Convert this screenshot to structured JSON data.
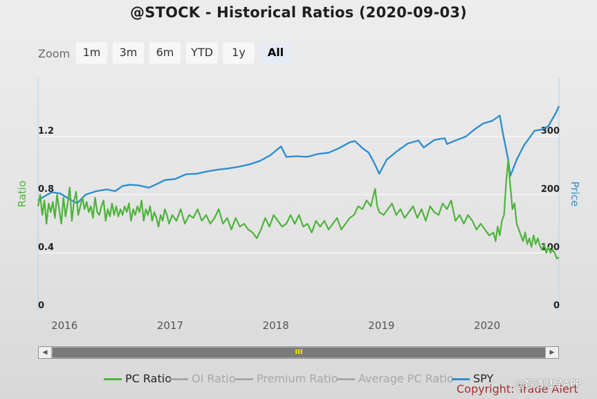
{
  "title": "@STOCK - Historical Ratios (2020-09-03)",
  "zoom": {
    "label": "Zoom",
    "buttons": [
      "1m",
      "3m",
      "6m",
      "YTD",
      "1y",
      "All"
    ],
    "active": "All"
  },
  "legend": [
    {
      "name": "PC Ratio",
      "color": "#4db33b",
      "visible": true
    },
    {
      "name": "OI Ratio",
      "color": "#a8a8a8",
      "visible": false
    },
    {
      "name": "Premium Ratio",
      "color": "#a8a8a8",
      "visible": false
    },
    {
      "name": "Average PC Ratio",
      "color": "#a8a8a8",
      "visible": false
    },
    {
      "name": "SPY",
      "color": "#2f8fd0",
      "visible": true
    }
  ],
  "navigator": {
    "grip": "III",
    "left_arrow": "◀",
    "right_arrow": "▶"
  },
  "copyright": "Copyright: Trade Alert",
  "watermark": "@智通财经APP",
  "chart_data": {
    "type": "line",
    "x_range": [
      2015.75,
      2020.68
    ],
    "x_ticks": [
      "2016",
      "2017",
      "2018",
      "2019",
      "2020"
    ],
    "x_tick_values": [
      2016,
      2017,
      2018,
      2019,
      2020
    ],
    "y_left": {
      "label": "Ratio",
      "range": [
        0,
        1.6
      ],
      "ticks": [
        "0",
        "0.4",
        "0.8",
        "1.2"
      ],
      "tick_values": [
        0,
        0.4,
        0.8,
        1.2
      ]
    },
    "y_right": {
      "label": "Price",
      "range": [
        0,
        400
      ],
      "ticks": [
        "0",
        "100",
        "200",
        "300"
      ],
      "tick_values": [
        0,
        100,
        200,
        300
      ]
    },
    "series": [
      {
        "name": "SPY",
        "axis": "right",
        "points": [
          [
            2015.75,
            190
          ],
          [
            2015.8,
            196
          ],
          [
            2015.88,
            204
          ],
          [
            2015.96,
            202
          ],
          [
            2016.05,
            192
          ],
          [
            2016.12,
            185
          ],
          [
            2016.2,
            200
          ],
          [
            2016.3,
            206
          ],
          [
            2016.4,
            209
          ],
          [
            2016.48,
            206
          ],
          [
            2016.55,
            215
          ],
          [
            2016.62,
            217
          ],
          [
            2016.7,
            216
          ],
          [
            2016.8,
            212
          ],
          [
            2016.87,
            218
          ],
          [
            2016.95,
            225
          ],
          [
            2017.05,
            227
          ],
          [
            2017.15,
            235
          ],
          [
            2017.25,
            236
          ],
          [
            2017.35,
            240
          ],
          [
            2017.45,
            243
          ],
          [
            2017.55,
            245
          ],
          [
            2017.65,
            248
          ],
          [
            2017.75,
            252
          ],
          [
            2017.85,
            258
          ],
          [
            2017.95,
            268
          ],
          [
            2018.05,
            283
          ],
          [
            2018.1,
            265
          ],
          [
            2018.2,
            266
          ],
          [
            2018.3,
            265
          ],
          [
            2018.4,
            270
          ],
          [
            2018.5,
            272
          ],
          [
            2018.6,
            280
          ],
          [
            2018.7,
            290
          ],
          [
            2018.75,
            292
          ],
          [
            2018.82,
            280
          ],
          [
            2018.88,
            272
          ],
          [
            2018.93,
            255
          ],
          [
            2018.98,
            236
          ],
          [
            2019.05,
            260
          ],
          [
            2019.15,
            275
          ],
          [
            2019.25,
            288
          ],
          [
            2019.35,
            293
          ],
          [
            2019.4,
            281
          ],
          [
            2019.5,
            294
          ],
          [
            2019.6,
            297
          ],
          [
            2019.62,
            287
          ],
          [
            2019.7,
            293
          ],
          [
            2019.8,
            300
          ],
          [
            2019.88,
            312
          ],
          [
            2019.96,
            322
          ],
          [
            2020.05,
            327
          ],
          [
            2020.12,
            336
          ],
          [
            2020.15,
            305
          ],
          [
            2020.2,
            260
          ],
          [
            2020.22,
            232
          ],
          [
            2020.28,
            260
          ],
          [
            2020.35,
            285
          ],
          [
            2020.45,
            310
          ],
          [
            2020.52,
            312
          ],
          [
            2020.58,
            318
          ],
          [
            2020.65,
            340
          ],
          [
            2020.68,
            352
          ]
        ]
      },
      {
        "name": "PC Ratio",
        "axis": "left",
        "points": [
          [
            2015.75,
            0.72
          ],
          [
            2015.77,
            0.8
          ],
          [
            2015.79,
            0.66
          ],
          [
            2015.81,
            0.76
          ],
          [
            2015.83,
            0.6
          ],
          [
            2015.85,
            0.74
          ],
          [
            2015.87,
            0.68
          ],
          [
            2015.89,
            0.75
          ],
          [
            2015.91,
            0.64
          ],
          [
            2015.93,
            0.8
          ],
          [
            2015.95,
            0.7
          ],
          [
            2015.97,
            0.6
          ],
          [
            2015.99,
            0.78
          ],
          [
            2016.01,
            0.65
          ],
          [
            2016.03,
            0.74
          ],
          [
            2016.05,
            0.85
          ],
          [
            2016.07,
            0.62
          ],
          [
            2016.09,
            0.75
          ],
          [
            2016.11,
            0.82
          ],
          [
            2016.13,
            0.66
          ],
          [
            2016.15,
            0.72
          ],
          [
            2016.17,
            0.78
          ],
          [
            2016.19,
            0.7
          ],
          [
            2016.21,
            0.75
          ],
          [
            2016.23,
            0.68
          ],
          [
            2016.25,
            0.72
          ],
          [
            2016.27,
            0.64
          ],
          [
            2016.29,
            0.78
          ],
          [
            2016.31,
            0.68
          ],
          [
            2016.33,
            0.66
          ],
          [
            2016.35,
            0.72
          ],
          [
            2016.37,
            0.76
          ],
          [
            2016.39,
            0.62
          ],
          [
            2016.41,
            0.7
          ],
          [
            2016.43,
            0.65
          ],
          [
            2016.45,
            0.74
          ],
          [
            2016.47,
            0.66
          ],
          [
            2016.49,
            0.72
          ],
          [
            2016.51,
            0.65
          ],
          [
            2016.53,
            0.7
          ],
          [
            2016.55,
            0.66
          ],
          [
            2016.57,
            0.72
          ],
          [
            2016.59,
            0.68
          ],
          [
            2016.61,
            0.74
          ],
          [
            2016.63,
            0.62
          ],
          [
            2016.65,
            0.7
          ],
          [
            2016.67,
            0.66
          ],
          [
            2016.69,
            0.72
          ],
          [
            2016.71,
            0.68
          ],
          [
            2016.73,
            0.76
          ],
          [
            2016.75,
            0.62
          ],
          [
            2016.77,
            0.7
          ],
          [
            2016.79,
            0.66
          ],
          [
            2016.81,
            0.72
          ],
          [
            2016.83,
            0.62
          ],
          [
            2016.85,
            0.68
          ],
          [
            2016.87,
            0.64
          ],
          [
            2016.89,
            0.58
          ],
          [
            2016.91,
            0.66
          ],
          [
            2016.93,
            0.62
          ],
          [
            2016.95,
            0.7
          ],
          [
            2016.97,
            0.66
          ],
          [
            2016.99,
            0.6
          ],
          [
            2017.02,
            0.66
          ],
          [
            2017.06,
            0.62
          ],
          [
            2017.1,
            0.7
          ],
          [
            2017.14,
            0.6
          ],
          [
            2017.18,
            0.66
          ],
          [
            2017.22,
            0.64
          ],
          [
            2017.26,
            0.7
          ],
          [
            2017.3,
            0.62
          ],
          [
            2017.34,
            0.66
          ],
          [
            2017.38,
            0.6
          ],
          [
            2017.42,
            0.64
          ],
          [
            2017.46,
            0.7
          ],
          [
            2017.5,
            0.6
          ],
          [
            2017.54,
            0.64
          ],
          [
            2017.58,
            0.56
          ],
          [
            2017.62,
            0.64
          ],
          [
            2017.66,
            0.58
          ],
          [
            2017.7,
            0.6
          ],
          [
            2017.74,
            0.56
          ],
          [
            2017.78,
            0.54
          ],
          [
            2017.82,
            0.5
          ],
          [
            2017.86,
            0.56
          ],
          [
            2017.9,
            0.64
          ],
          [
            2017.94,
            0.58
          ],
          [
            2017.98,
            0.66
          ],
          [
            2018.02,
            0.62
          ],
          [
            2018.06,
            0.58
          ],
          [
            2018.1,
            0.6
          ],
          [
            2018.14,
            0.66
          ],
          [
            2018.18,
            0.6
          ],
          [
            2018.22,
            0.66
          ],
          [
            2018.26,
            0.58
          ],
          [
            2018.3,
            0.6
          ],
          [
            2018.34,
            0.54
          ],
          [
            2018.38,
            0.62
          ],
          [
            2018.42,
            0.58
          ],
          [
            2018.46,
            0.62
          ],
          [
            2018.5,
            0.56
          ],
          [
            2018.54,
            0.6
          ],
          [
            2018.58,
            0.64
          ],
          [
            2018.62,
            0.56
          ],
          [
            2018.66,
            0.6
          ],
          [
            2018.7,
            0.64
          ],
          [
            2018.74,
            0.66
          ],
          [
            2018.78,
            0.72
          ],
          [
            2018.82,
            0.7
          ],
          [
            2018.86,
            0.76
          ],
          [
            2018.9,
            0.72
          ],
          [
            2018.94,
            0.84
          ],
          [
            2018.96,
            0.72
          ],
          [
            2018.98,
            0.68
          ],
          [
            2019.02,
            0.66
          ],
          [
            2019.06,
            0.7
          ],
          [
            2019.1,
            0.74
          ],
          [
            2019.14,
            0.66
          ],
          [
            2019.18,
            0.7
          ],
          [
            2019.22,
            0.64
          ],
          [
            2019.26,
            0.68
          ],
          [
            2019.3,
            0.72
          ],
          [
            2019.34,
            0.64
          ],
          [
            2019.38,
            0.7
          ],
          [
            2019.42,
            0.62
          ],
          [
            2019.46,
            0.72
          ],
          [
            2019.5,
            0.68
          ],
          [
            2019.54,
            0.66
          ],
          [
            2019.58,
            0.74
          ],
          [
            2019.62,
            0.7
          ],
          [
            2019.66,
            0.76
          ],
          [
            2019.7,
            0.62
          ],
          [
            2019.74,
            0.66
          ],
          [
            2019.78,
            0.6
          ],
          [
            2019.82,
            0.66
          ],
          [
            2019.86,
            0.62
          ],
          [
            2019.9,
            0.56
          ],
          [
            2019.94,
            0.6
          ],
          [
            2019.98,
            0.56
          ],
          [
            2020.02,
            0.52
          ],
          [
            2020.06,
            0.54
          ],
          [
            2020.08,
            0.48
          ],
          [
            2020.1,
            0.58
          ],
          [
            2020.12,
            0.52
          ],
          [
            2020.14,
            0.62
          ],
          [
            2020.16,
            0.66
          ],
          [
            2020.18,
            0.88
          ],
          [
            2020.2,
            1.04
          ],
          [
            2020.22,
            0.86
          ],
          [
            2020.24,
            0.7
          ],
          [
            2020.26,
            0.74
          ],
          [
            2020.28,
            0.6
          ],
          [
            2020.3,
            0.56
          ],
          [
            2020.32,
            0.52
          ],
          [
            2020.34,
            0.48
          ],
          [
            2020.36,
            0.54
          ],
          [
            2020.38,
            0.46
          ],
          [
            2020.4,
            0.5
          ],
          [
            2020.42,
            0.44
          ],
          [
            2020.44,
            0.52
          ],
          [
            2020.46,
            0.46
          ],
          [
            2020.48,
            0.5
          ],
          [
            2020.5,
            0.45
          ],
          [
            2020.52,
            0.42
          ],
          [
            2020.54,
            0.46
          ],
          [
            2020.56,
            0.4
          ],
          [
            2020.58,
            0.44
          ],
          [
            2020.6,
            0.4
          ],
          [
            2020.62,
            0.42
          ],
          [
            2020.64,
            0.4
          ],
          [
            2020.66,
            0.36
          ],
          [
            2020.68,
            0.37
          ]
        ]
      }
    ]
  }
}
